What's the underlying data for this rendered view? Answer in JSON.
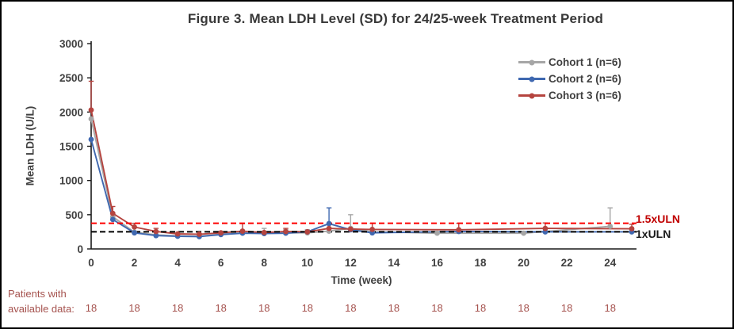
{
  "chart": {
    "title": "Figure 3. Mean LDH Level (SD) for 24/25-week Treatment Period"
  },
  "chart_data": {
    "type": "line",
    "title": "Figure 3. Mean LDH Level (SD) for 24/25-week Treatment Period",
    "xlabel": "Time (week)",
    "ylabel": "Mean LDH (U/L)",
    "xlim": [
      0,
      25
    ],
    "ylim": [
      0,
      3000
    ],
    "x_ticks": [
      0,
      2,
      4,
      6,
      8,
      10,
      12,
      14,
      16,
      18,
      20,
      22,
      24
    ],
    "y_ticks": [
      0,
      500,
      1000,
      1500,
      2000,
      2500,
      3000
    ],
    "grid": false,
    "legend_position": "upper right inside",
    "error_bars": "upper SD only",
    "series": [
      {
        "name": "Cohort 1 (n=6)",
        "color": "#a6a6a6",
        "x": [
          0,
          1,
          2,
          3,
          4,
          5,
          6,
          7,
          8,
          9,
          10,
          11,
          12,
          13,
          16,
          20,
          24
        ],
        "y": [
          1900,
          470,
          245,
          205,
          190,
          185,
          215,
          235,
          230,
          235,
          235,
          260,
          300,
          250,
          230,
          230,
          330
        ],
        "err_up": [
          null,
          null,
          null,
          null,
          null,
          null,
          null,
          null,
          70,
          45,
          45,
          null,
          200,
          null,
          null,
          null,
          270
        ]
      },
      {
        "name": "Cohort 2 (n=6)",
        "color": "#3f68b0",
        "x": [
          0,
          1,
          2,
          3,
          4,
          5,
          6,
          7,
          8,
          9,
          10,
          11,
          12,
          13,
          17,
          21,
          25
        ],
        "y": [
          1600,
          430,
          235,
          195,
          185,
          180,
          210,
          230,
          225,
          230,
          250,
          370,
          280,
          235,
          255,
          250,
          250
        ],
        "err_up": [
          null,
          null,
          null,
          null,
          null,
          null,
          null,
          null,
          null,
          null,
          null,
          230,
          null,
          null,
          null,
          null,
          null
        ]
      },
      {
        "name": "Cohort 3 (n=6)",
        "color": "#b5443f",
        "x": [
          0,
          1,
          2,
          3,
          4,
          5,
          6,
          7,
          8,
          9,
          10,
          11,
          12,
          13,
          17,
          21,
          25
        ],
        "y": [
          2030,
          520,
          320,
          255,
          220,
          215,
          235,
          260,
          240,
          255,
          250,
          300,
          290,
          285,
          280,
          300,
          295
        ],
        "err_up": [
          420,
          100,
          55,
          45,
          null,
          null,
          null,
          110,
          null,
          45,
          null,
          null,
          null,
          90,
          95,
          80,
          65
        ]
      }
    ],
    "reference_lines": [
      {
        "label": "1.5xULN",
        "value": 375,
        "color": "#fe0000",
        "style": "dashed",
        "label_color": "#c00000"
      },
      {
        "label": "1xULN",
        "value": 250,
        "color": "#000000",
        "style": "dashed",
        "label_color": "#1a1a1a"
      }
    ]
  },
  "annotations": {
    "uln_15_label": "1.5xULN",
    "uln_1_label": "1xULN",
    "patients_label_line1": "Patients with",
    "patients_label_line2": "available data:",
    "patients": {
      "weeks": [
        0,
        2,
        4,
        6,
        8,
        10,
        12,
        14,
        16,
        18,
        20,
        22,
        24
      ],
      "counts": [
        "18",
        "18",
        "18",
        "18",
        "18",
        "18",
        "18",
        "18",
        "18",
        "18",
        "18",
        "18",
        "18"
      ]
    }
  },
  "colors": {
    "axis_text": "#404040",
    "title_text": "#383838",
    "patients_text": "#a5524e"
  }
}
